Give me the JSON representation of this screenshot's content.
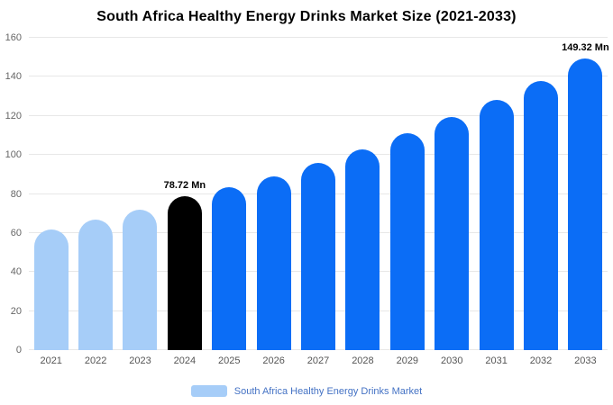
{
  "chart_data": {
    "type": "bar",
    "title": "South Africa Healthy Energy Drinks Market Size (2021-2033)",
    "categories": [
      "2021",
      "2022",
      "2023",
      "2024",
      "2025",
      "2026",
      "2027",
      "2028",
      "2029",
      "2030",
      "2031",
      "2032",
      "2033"
    ],
    "values": [
      62.0,
      67.0,
      72.0,
      78.72,
      83.5,
      89.0,
      96.0,
      103.0,
      111.0,
      119.5,
      128.0,
      138.0,
      149.32
    ],
    "unit": "Mn",
    "ylim": [
      0,
      160
    ],
    "yticks": [
      0,
      20,
      40,
      60,
      80,
      100,
      120,
      140,
      160
    ],
    "grid": true,
    "annotations": [
      {
        "category": "2024",
        "text": "78.72 Mn"
      },
      {
        "category": "2033",
        "text": "149.32 Mn"
      }
    ],
    "bar_colors": {
      "historical": "#a6cdf8",
      "highlight": "#000000",
      "forecast": "#0b6df6"
    },
    "color_map": [
      "historical",
      "historical",
      "historical",
      "highlight",
      "forecast",
      "forecast",
      "forecast",
      "forecast",
      "forecast",
      "forecast",
      "forecast",
      "forecast",
      "forecast"
    ],
    "legend": {
      "label": "South Africa Healthy Energy Drinks Market",
      "swatch_color": "#a6cdf8",
      "text_color": "#4472c4"
    }
  }
}
